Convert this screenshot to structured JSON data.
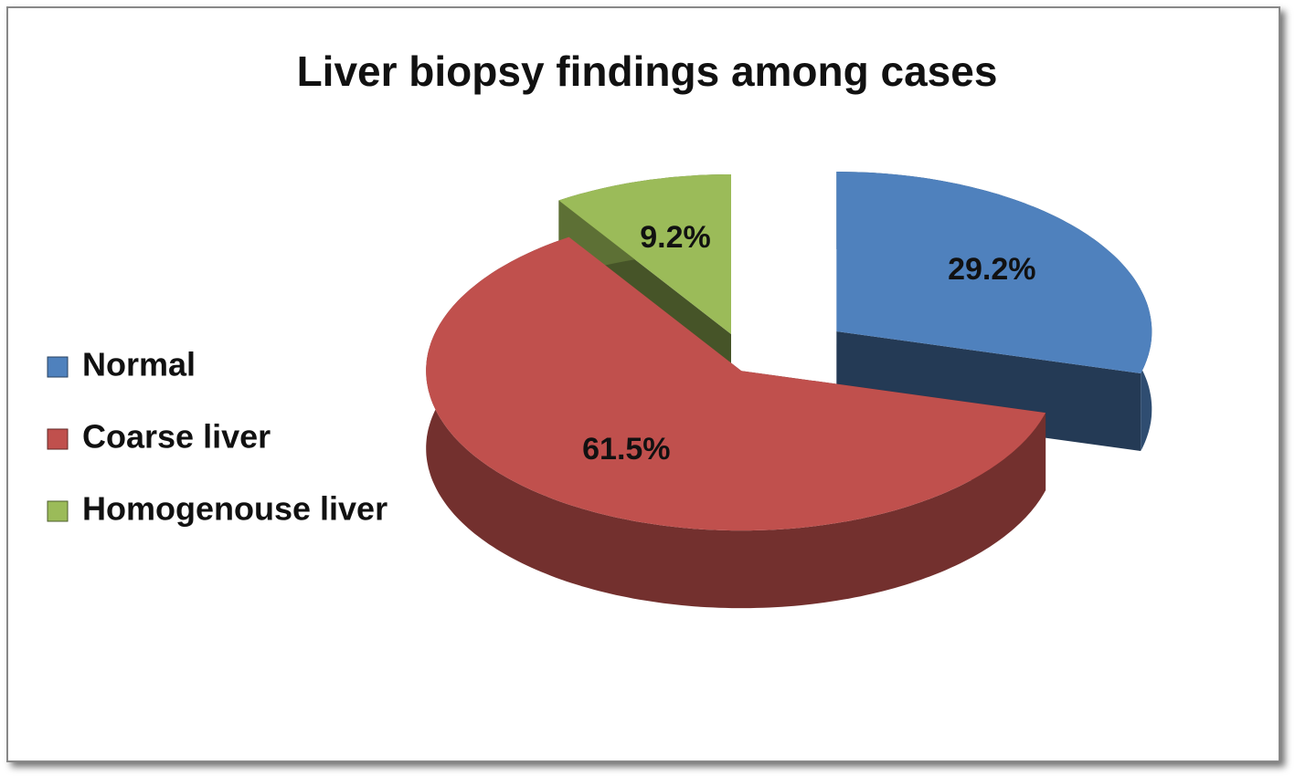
{
  "chart_data": {
    "type": "pie",
    "title": "Liver biopsy findings among cases",
    "categories": [
      "Normal",
      "Coarse liver",
      "Homogenouse liver"
    ],
    "values": [
      29.2,
      61.5,
      9.2
    ],
    "value_labels": [
      "29.2%",
      "61.5%",
      "9.2%"
    ],
    "colors": [
      "#4f81bd",
      "#c0504d",
      "#9bbb59"
    ],
    "legend": "left"
  }
}
